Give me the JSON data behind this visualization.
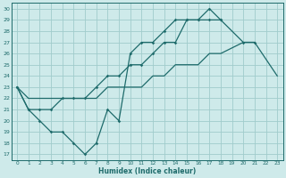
{
  "xlabel": "Humidex (Indice chaleur)",
  "bg_color": "#ceeaea",
  "grid_color": "#a0cccc",
  "line_color": "#1e6b6b",
  "xlim": [
    -0.5,
    23.5
  ],
  "ylim": [
    16.5,
    30.5
  ],
  "xticks": [
    0,
    1,
    2,
    3,
    4,
    5,
    6,
    7,
    8,
    9,
    10,
    11,
    12,
    13,
    14,
    15,
    16,
    17,
    18,
    19,
    20,
    21,
    22,
    23
  ],
  "yticks": [
    17,
    18,
    19,
    20,
    21,
    22,
    23,
    24,
    25,
    26,
    27,
    28,
    29,
    30
  ],
  "line1_x": [
    0,
    1,
    2,
    3,
    4,
    5,
    6,
    7,
    8,
    9,
    10,
    11,
    12,
    13,
    14,
    15,
    16,
    17,
    18
  ],
  "line1_y": [
    23,
    21,
    20,
    19,
    19,
    18,
    17,
    18,
    21,
    20,
    26,
    27,
    27,
    28,
    29,
    29,
    29,
    30,
    29
  ],
  "line2_x": [
    0,
    1,
    2,
    3,
    4,
    5,
    6,
    7,
    8,
    9,
    10,
    11,
    12,
    13,
    14,
    15,
    16,
    17,
    18,
    20,
    21
  ],
  "line2_y": [
    23,
    21,
    21,
    21,
    22,
    22,
    22,
    23,
    24,
    24,
    25,
    25,
    26,
    27,
    27,
    29,
    29,
    29,
    29,
    27,
    27
  ],
  "line3_x": [
    0,
    1,
    2,
    3,
    4,
    5,
    6,
    7,
    8,
    9,
    10,
    11,
    12,
    13,
    14,
    15,
    16,
    17,
    18,
    20,
    21,
    23
  ],
  "line3_y": [
    23,
    22,
    22,
    22,
    22,
    22,
    22,
    22,
    23,
    23,
    23,
    23,
    24,
    24,
    25,
    25,
    25,
    26,
    26,
    27,
    27,
    24
  ]
}
